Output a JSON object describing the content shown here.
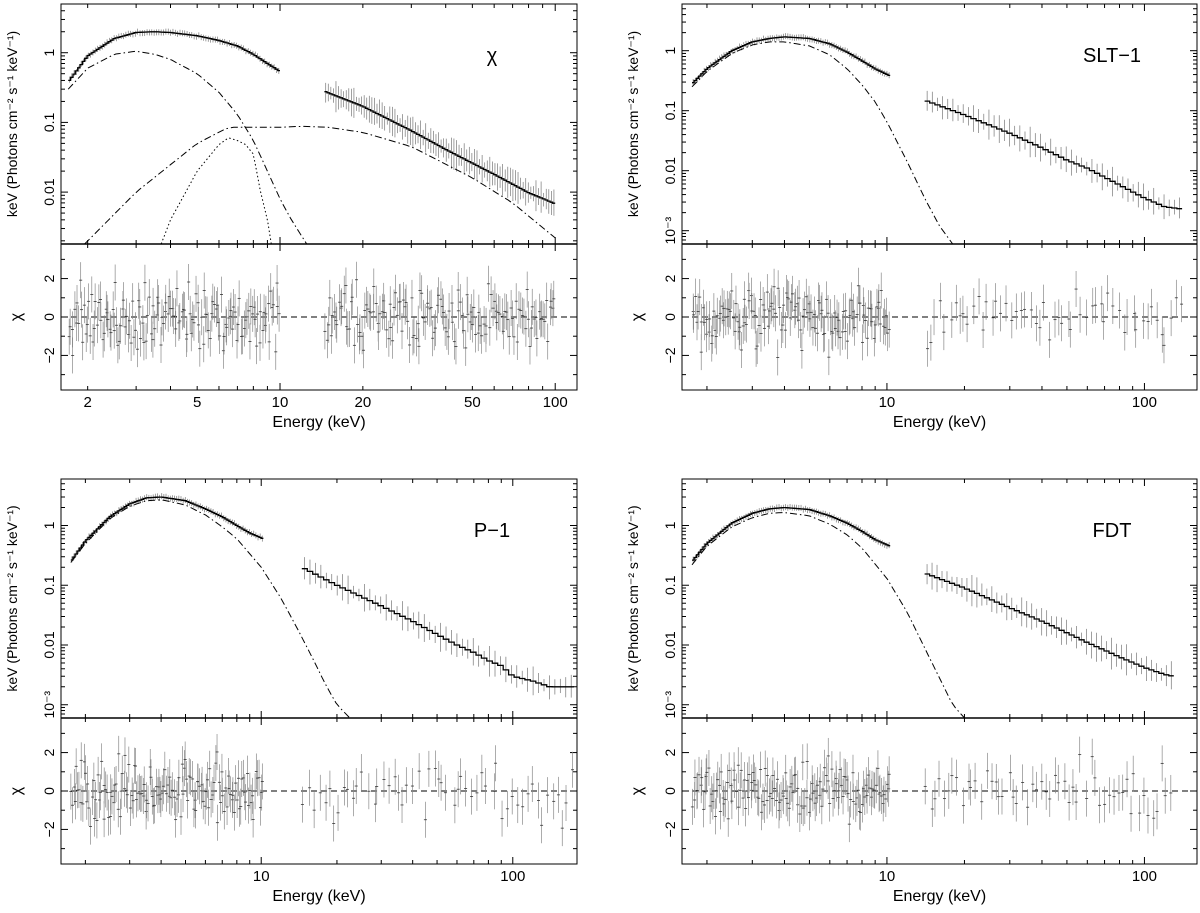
{
  "figure": {
    "xlabel": "Energy (keV)",
    "ylabel_top": "keV (Photons cm⁻² s⁻¹ keV⁻¹)",
    "ylabel_bottom": "χ"
  },
  "chart_data": [
    {
      "type": "line",
      "label": "χ",
      "xscale": "log",
      "xlim": [
        1.6,
        120
      ],
      "x_ticks": [
        "2",
        "5",
        "10",
        "20",
        "50",
        "100"
      ],
      "spectrum_panel": {
        "yscale": "log",
        "ylim": [
          0.0018,
          5.0
        ],
        "y_ticks": [
          "0.01",
          "0.1",
          "1"
        ],
        "series": [
          {
            "role": "total model + data",
            "x": [
              1.7,
              2.0,
              2.5,
              3.0,
              3.5,
              4.0,
              5.0,
              6.0,
              7.0,
              8.0,
              9.0,
              10.0
            ],
            "y": [
              0.38,
              0.9,
              1.6,
              1.95,
              2.0,
              1.95,
              1.75,
              1.5,
              1.25,
              0.95,
              0.7,
              0.54
            ]
          },
          {
            "role": "total model + data",
            "x": [
              14.5,
              20,
              30,
              40,
              50,
              60,
              70,
              80,
              90,
              100
            ],
            "y": [
              0.28,
              0.17,
              0.076,
              0.041,
              0.026,
              0.018,
              0.013,
              0.0098,
              0.0081,
              0.0068
            ]
          },
          {
            "role": "component 1",
            "style": "dash-dot",
            "x": [
              1.7,
              2.0,
              2.5,
              3.0,
              3.5,
              4.0,
              5.0,
              6.0,
              7.0,
              8.0,
              9.0,
              10.0,
              11.0,
              12.5
            ],
            "y": [
              0.3,
              0.6,
              0.95,
              1.05,
              0.95,
              0.8,
              0.5,
              0.27,
              0.13,
              0.055,
              0.02,
              0.008,
              0.004,
              0.0018
            ]
          },
          {
            "role": "component 2",
            "style": "dash-dot",
            "x": [
              1.95,
              3.0,
              5.0,
              6.5,
              8.0,
              10.0,
              12.0,
              15.0,
              20.0,
              30.0,
              50.0,
              70.0,
              100.0
            ],
            "y": [
              0.0018,
              0.01,
              0.05,
              0.085,
              0.085,
              0.085,
              0.088,
              0.085,
              0.072,
              0.045,
              0.016,
              0.007,
              0.0022
            ]
          },
          {
            "role": "component 3",
            "style": "dotted",
            "x": [
              3.7,
              4.0,
              5.0,
              6.0,
              6.5,
              7.0,
              7.5,
              8.0,
              8.5,
              9.0,
              9.3
            ],
            "y": [
              0.0018,
              0.004,
              0.02,
              0.048,
              0.06,
              0.055,
              0.048,
              0.035,
              0.01,
              0.004,
              0.0018
            ]
          }
        ]
      },
      "residual_panel": {
        "ylim": [
          -3.8,
          3.8
        ],
        "y_ticks": [
          "−2",
          "0",
          "2"
        ]
      }
    },
    {
      "type": "line",
      "label": "SLT−1",
      "xscale": "log",
      "xlim": [
        1.6,
        160
      ],
      "x_ticks": [
        "10",
        "100"
      ],
      "spectrum_panel": {
        "yscale": "log",
        "ylim": [
          0.0006,
          6.0
        ],
        "y_ticks": [
          "10⁻³",
          "0.01",
          "0.1",
          "1"
        ],
        "series": [
          {
            "role": "total model + data",
            "x": [
              1.75,
              2.0,
              2.5,
              3.0,
              3.5,
              4.0,
              5.0,
              6.0,
              7.0,
              8.0,
              9.0,
              10.3
            ],
            "y": [
              0.28,
              0.5,
              1.0,
              1.4,
              1.6,
              1.7,
              1.6,
              1.3,
              0.95,
              0.68,
              0.5,
              0.38
            ]
          },
          {
            "role": "total model + data",
            "x": [
              14,
              20,
              30,
              40,
              50,
              60,
              70,
              80,
              100,
              120,
              140
            ],
            "y": [
              0.15,
              0.085,
              0.042,
              0.024,
              0.015,
              0.011,
              0.0078,
              0.0058,
              0.0035,
              0.0025,
              0.0023
            ]
          },
          {
            "role": "component 1",
            "style": "dash-dot",
            "x": [
              1.75,
              2.0,
              2.5,
              3.0,
              3.5,
              4.0,
              5.0,
              6.0,
              7.0,
              8.0,
              9.0,
              10.0,
              12.0,
              14.0,
              16.0,
              18.0
            ],
            "y": [
              0.25,
              0.45,
              0.9,
              1.25,
              1.4,
              1.4,
              1.2,
              0.85,
              0.5,
              0.27,
              0.14,
              0.065,
              0.014,
              0.0035,
              0.0012,
              0.0006
            ]
          }
        ]
      },
      "residual_panel": {
        "ylim": [
          -3.8,
          3.8
        ],
        "y_ticks": [
          "−2",
          "0",
          "2"
        ]
      }
    },
    {
      "type": "line",
      "label": "P−1",
      "xscale": "log",
      "xlim": [
        1.6,
        180
      ],
      "x_ticks": [
        "10",
        "100"
      ],
      "spectrum_panel": {
        "yscale": "log",
        "ylim": [
          0.0006,
          6.0
        ],
        "y_ticks": [
          "10⁻³",
          "0.01",
          "0.1",
          "1"
        ],
        "series": [
          {
            "role": "total model + data",
            "x": [
              1.75,
              2.0,
              2.5,
              3.0,
              3.5,
              4.0,
              5.0,
              6.0,
              7.0,
              8.0,
              9.0,
              10.2
            ],
            "y": [
              0.25,
              0.55,
              1.4,
              2.3,
              2.9,
              3.0,
              2.6,
              1.9,
              1.4,
              1.0,
              0.75,
              0.6
            ]
          },
          {
            "role": "total model + data",
            "x": [
              14.5,
              20,
              30,
              40,
              50,
              60,
              70,
              80,
              90,
              100,
              120,
              140,
              175
            ],
            "y": [
              0.2,
              0.1,
              0.045,
              0.025,
              0.015,
              0.01,
              0.0075,
              0.0055,
              0.0045,
              0.003,
              0.0025,
              0.002,
              0.002
            ]
          },
          {
            "role": "component 1",
            "style": "dash-dot",
            "x": [
              1.75,
              2.0,
              2.5,
              3.0,
              3.5,
              4.0,
              5.0,
              6.0,
              7.0,
              8.0,
              10.0,
              12.0,
              14.0,
              16.0,
              18.0,
              20.0,
              22.5
            ],
            "y": [
              0.24,
              0.5,
              1.3,
              2.1,
              2.6,
              2.7,
              2.2,
              1.5,
              0.95,
              0.6,
              0.2,
              0.06,
              0.018,
              0.006,
              0.0022,
              0.001,
              0.0006
            ]
          }
        ]
      },
      "residual_panel": {
        "ylim": [
          -3.8,
          3.8
        ],
        "y_ticks": [
          "−2",
          "0",
          "2"
        ]
      }
    },
    {
      "type": "line",
      "label": "FDT",
      "xscale": "log",
      "xlim": [
        1.6,
        160
      ],
      "x_ticks": [
        "10",
        "100"
      ],
      "spectrum_panel": {
        "yscale": "log",
        "ylim": [
          0.0006,
          6.0
        ],
        "y_ticks": [
          "10⁻³",
          "0.01",
          "0.1",
          "1"
        ],
        "series": [
          {
            "role": "total model + data",
            "x": [
              1.75,
              2.0,
              2.5,
              3.0,
              3.5,
              4.0,
              5.0,
              6.0,
              7.0,
              8.0,
              9.0,
              10.3
            ],
            "y": [
              0.25,
              0.5,
              1.1,
              1.6,
              1.9,
              2.0,
              1.85,
              1.45,
              1.1,
              0.8,
              0.58,
              0.45
            ]
          },
          {
            "role": "total model + data",
            "x": [
              14,
              20,
              30,
              40,
              50,
              60,
              70,
              80,
              100,
              120,
              130
            ],
            "y": [
              0.16,
              0.09,
              0.042,
              0.025,
              0.016,
              0.011,
              0.0082,
              0.0063,
              0.0042,
              0.0032,
              0.003
            ]
          },
          {
            "role": "component 1",
            "style": "dash-dot",
            "x": [
              1.75,
              2.0,
              2.5,
              3.0,
              3.5,
              4.0,
              5.0,
              6.0,
              7.0,
              8.0,
              10.0,
              12.0,
              14.0,
              16.0,
              18.0,
              20.0
            ],
            "y": [
              0.22,
              0.45,
              0.95,
              1.35,
              1.6,
              1.65,
              1.45,
              1.05,
              0.7,
              0.42,
              0.13,
              0.035,
              0.009,
              0.0028,
              0.001,
              0.0006
            ]
          }
        ]
      },
      "residual_panel": {
        "ylim": [
          -3.8,
          3.8
        ],
        "y_ticks": [
          "−2",
          "0",
          "2"
        ]
      }
    }
  ]
}
